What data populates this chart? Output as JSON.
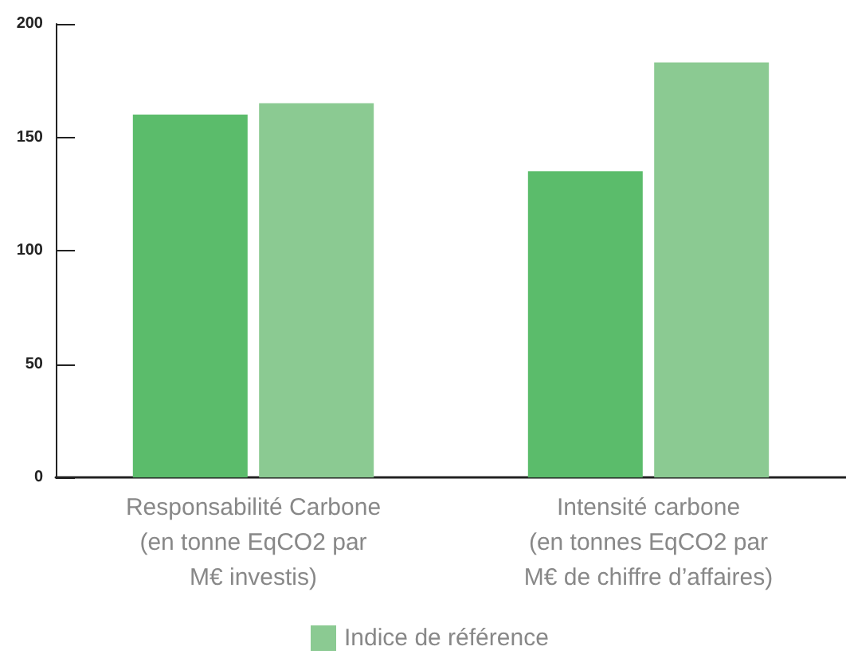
{
  "chart_data": {
    "type": "bar",
    "categories": [
      "Responsabilité Carbone\n(en tonne EqCO2 par\nM€ investis)",
      "Intensité carbone\n(en tonnes EqCO2 par\nM€ de chiffre d’affaires)"
    ],
    "series": [
      {
        "color": "#5bbc6b",
        "values": [
          160,
          135
        ]
      },
      {
        "name": "Indice de référence",
        "color": "#8bca92",
        "values": [
          165,
          183
        ]
      }
    ],
    "ylim": [
      0,
      200
    ],
    "yticks": [
      0,
      50,
      100,
      150,
      200
    ],
    "grid": false,
    "legend": "bottom left"
  }
}
